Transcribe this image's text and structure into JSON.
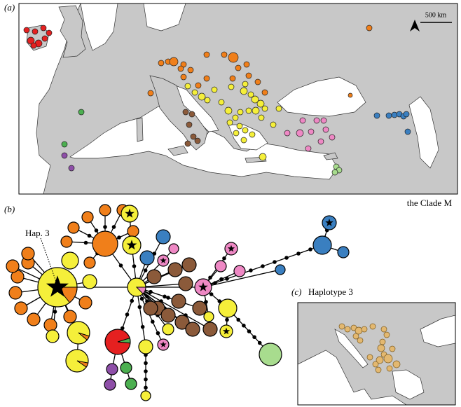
{
  "panel_a": {
    "label": "(a)",
    "scale_bar": "500 km",
    "caption": "the Clade M"
  },
  "panel_b": {
    "label": "(b)",
    "annotation": "Hap. 3"
  },
  "panel_c": {
    "label": "(c)",
    "title": "Haplotype 3"
  }
}
